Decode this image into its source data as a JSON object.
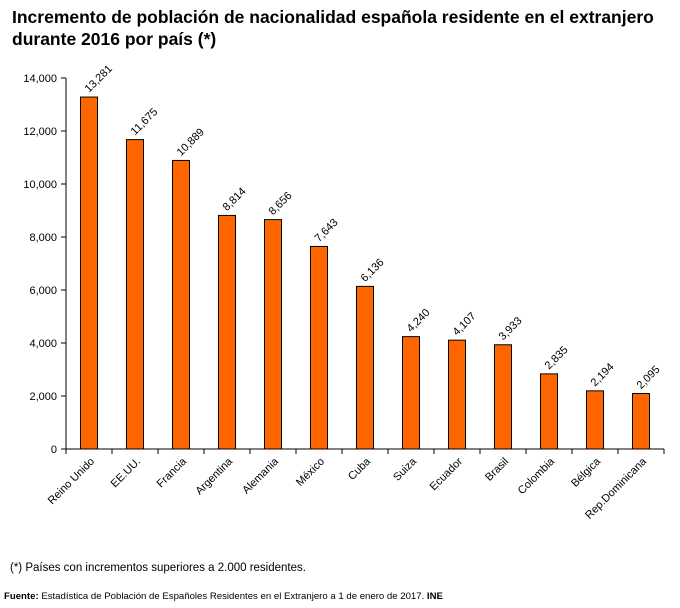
{
  "chart_data": {
    "type": "bar",
    "title_line1": "Incremento de población de nacionalidad española residente en el extranjero",
    "title_line2": "durante 2016 por país (*)",
    "categories": [
      "Reino Unido",
      "EE.UU.",
      "Francia",
      "Argentina",
      "Alemania",
      "México",
      "Cuba",
      "Suiza",
      "Ecuador",
      "Brasil",
      "Colombia",
      "Bélgica",
      "Rep.Dominicana"
    ],
    "values": [
      13281,
      11675,
      10889,
      8814,
      8656,
      7643,
      6136,
      4240,
      4107,
      3933,
      2835,
      2194,
      2095
    ],
    "value_labels": [
      "13,281",
      "11,675",
      "10,889",
      "8,814",
      "8,656",
      "7,643",
      "6,136",
      "4,240",
      "4,107",
      "3,933",
      "2,835",
      "2,194",
      "2,095"
    ],
    "ylim": [
      0,
      14000
    ],
    "yticks": [
      0,
      2000,
      4000,
      6000,
      8000,
      10000,
      12000,
      14000
    ],
    "ytick_labels": [
      "0",
      "2,000",
      "4,000",
      "6,000",
      "8,000",
      "10,000",
      "12,000",
      "14,000"
    ],
    "xlabel": "",
    "ylabel": "",
    "grid": false,
    "bar_color": "#ff6600",
    "bar_edge_color": "#000000"
  },
  "footnote": "(*) Países con incrementos superiores a 2.000 residentes.",
  "source": {
    "label": "Fuente:",
    "text": " Estadística de Población de Españoles Residentes en el Extranjero a 1 de enero de 2017.",
    "suffix": " INE"
  }
}
